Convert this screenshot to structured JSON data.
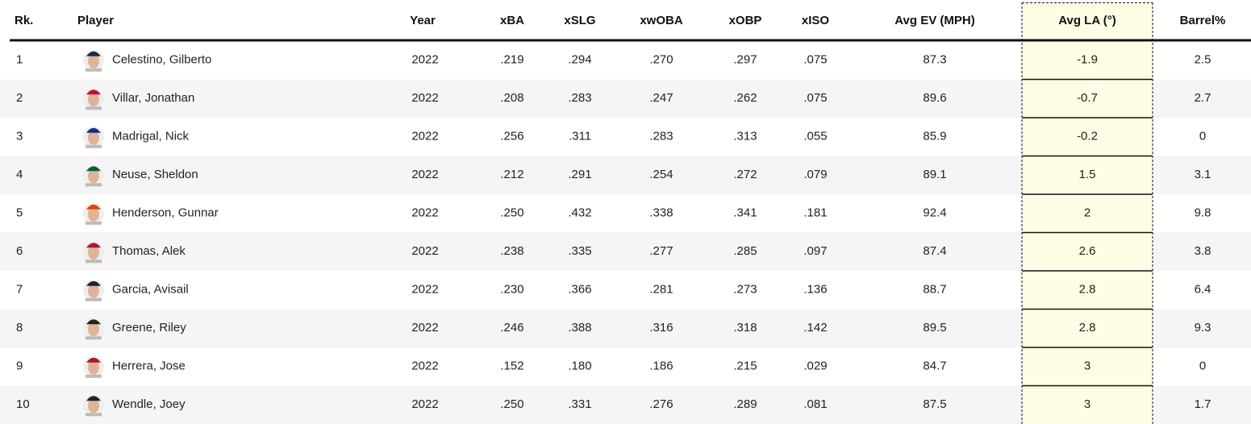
{
  "table": {
    "columns": [
      "Rk.",
      "Player",
      "Year",
      "xBA",
      "xSLG",
      "xwOBA",
      "xOBP",
      "xISO",
      "Avg EV (MPH)",
      "Avg LA (°)",
      "Barrel%"
    ],
    "rows": [
      [
        "1",
        "Celestino, Gilberto",
        "2022",
        ".219",
        ".294",
        ".270",
        ".297",
        ".075",
        "87.3",
        "-1.9",
        "2.5"
      ],
      [
        "2",
        "Villar, Jonathan",
        "2022",
        ".208",
        ".283",
        ".247",
        ".262",
        ".075",
        "89.6",
        "-0.7",
        "2.7"
      ],
      [
        "3",
        "Madrigal, Nick",
        "2022",
        ".256",
        ".311",
        ".283",
        ".313",
        ".055",
        "85.9",
        "-0.2",
        "0"
      ],
      [
        "4",
        "Neuse, Sheldon",
        "2022",
        ".212",
        ".291",
        ".254",
        ".272",
        ".079",
        "89.1",
        "1.5",
        "3.1"
      ],
      [
        "5",
        "Henderson, Gunnar",
        "2022",
        ".250",
        ".432",
        ".338",
        ".341",
        ".181",
        "92.4",
        "2",
        "9.8"
      ],
      [
        "6",
        "Thomas, Alek",
        "2022",
        ".238",
        ".335",
        ".277",
        ".285",
        ".097",
        "87.4",
        "2.6",
        "3.8"
      ],
      [
        "7",
        "Garcia, Avisail",
        "2022",
        ".230",
        ".366",
        ".281",
        ".273",
        ".136",
        "88.7",
        "2.8",
        "6.4"
      ],
      [
        "8",
        "Greene, Riley",
        "2022",
        ".246",
        ".388",
        ".316",
        ".318",
        ".142",
        "89.5",
        "2.8",
        "9.3"
      ],
      [
        "9",
        "Herrera, Jose",
        "2022",
        ".152",
        ".180",
        ".186",
        ".215",
        ".029",
        "84.7",
        "3",
        "0"
      ],
      [
        "10",
        "Wendle, Joey",
        "2022",
        ".250",
        ".331",
        ".276",
        ".289",
        ".081",
        "87.5",
        "3",
        "1.7"
      ]
    ]
  }
}
